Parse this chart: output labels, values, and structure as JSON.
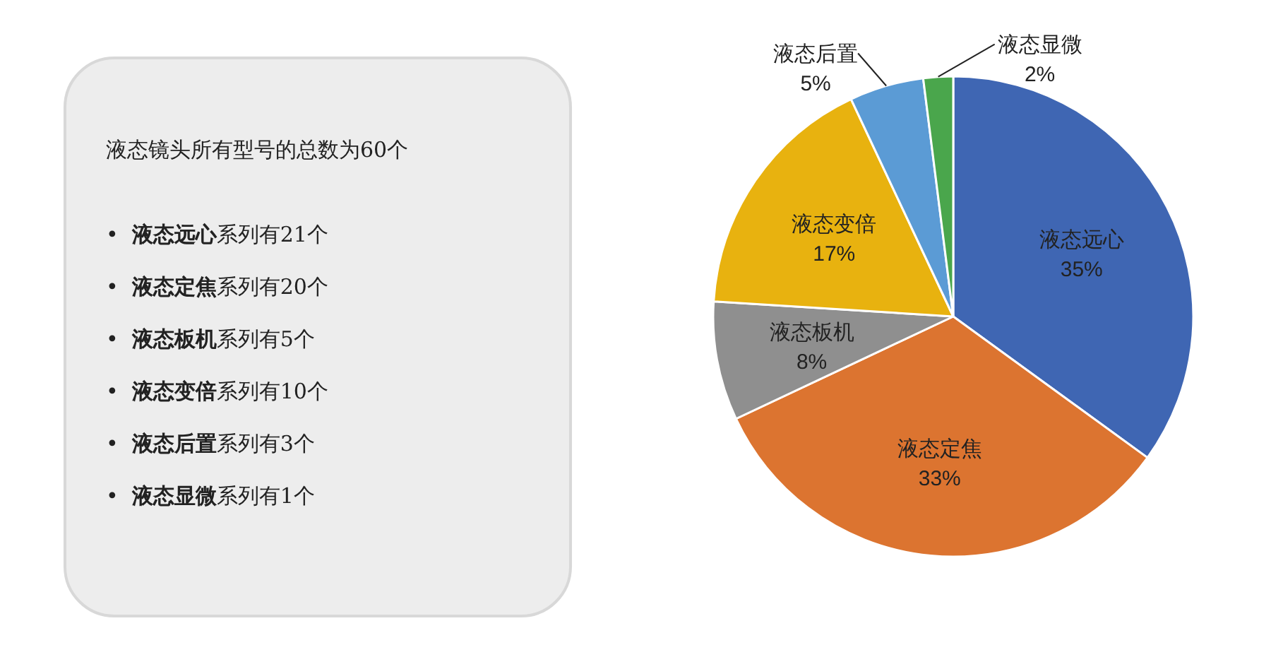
{
  "chart_data": [
    {
      "type": "other",
      "title": "液态镜头所有型号的总数为60个",
      "annotations": [
        "•  **液态远心**系列有21个",
        "•  **液态定焦**系列有20个",
        "•  **液态板机**系列有5个",
        "•  **液态变倍**系列有10个",
        "•  **液态后置**系列有3个",
        "•  **液态显微**系列有1个"
      ]
    },
    {
      "type": "pie",
      "categories": [
        "液态远心",
        "液态定焦",
        "液态板机",
        "液态变倍",
        "液态后置",
        "液态显微"
      ],
      "values": [
        35,
        33,
        8,
        17,
        5,
        2
      ],
      "value_labels": [
        "35%",
        "33%",
        "8%",
        "17%",
        "5%",
        "2%"
      ],
      "colors": [
        "#3f66b3",
        "#dc7430",
        "#8f8f8f",
        "#e8b20f",
        "#5b9bd5",
        "#4aa64c"
      ]
    }
  ]
}
